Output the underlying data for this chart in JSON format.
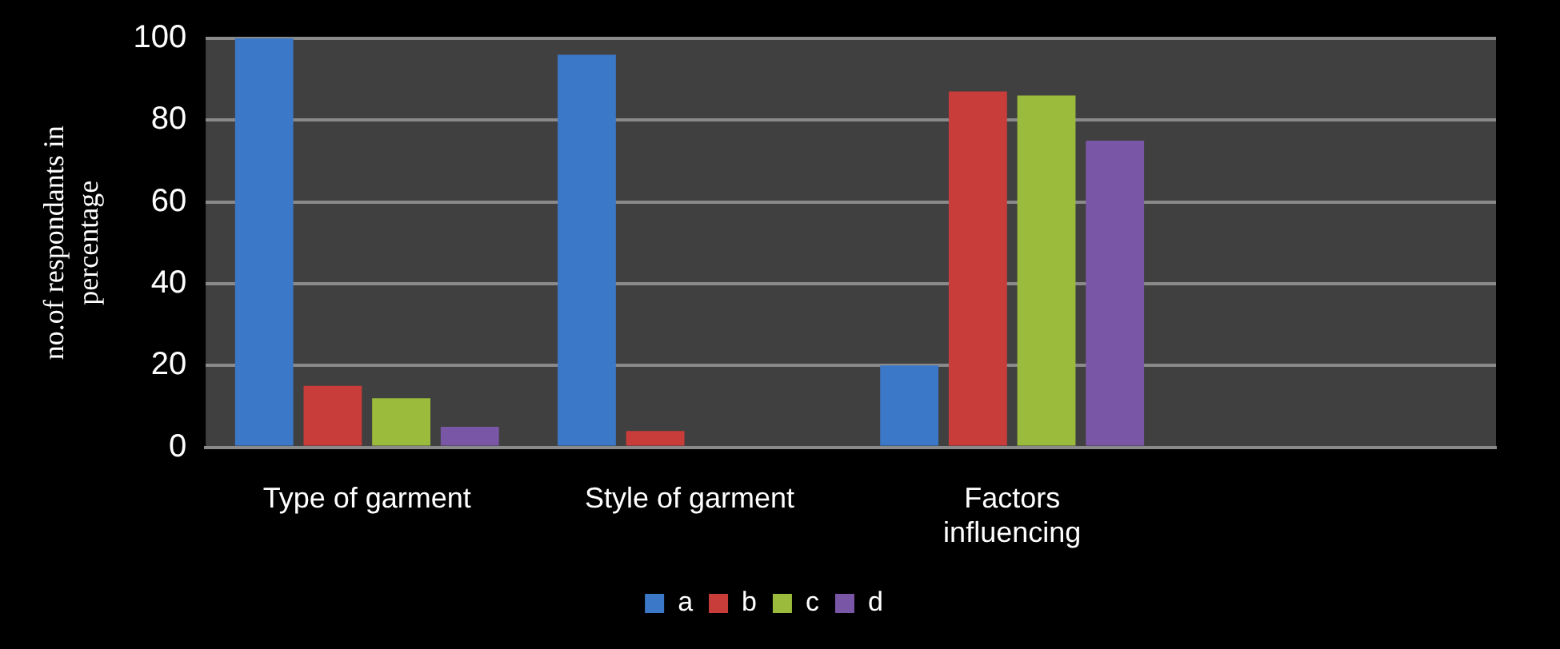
{
  "chart_data": {
    "type": "bar",
    "ylabel": "no.of respondants in percentage",
    "categories": [
      "Type of garment",
      "Style of garment",
      "Factors influencing",
      null
    ],
    "series": [
      {
        "name": "a",
        "color": "#3b78c8",
        "values": [
          100,
          96,
          20,
          null
        ]
      },
      {
        "name": "b",
        "color": "#c83c3a",
        "values": [
          15,
          4,
          87,
          null
        ]
      },
      {
        "name": "c",
        "color": "#9bbb3c",
        "values": [
          12,
          null,
          86,
          null
        ]
      },
      {
        "name": "d",
        "color": "#7a56a6",
        "values": [
          5,
          null,
          75,
          null
        ]
      }
    ],
    "ylim": [
      0,
      100
    ],
    "yticks": [
      0,
      20,
      40,
      60,
      80,
      100
    ],
    "grid": "y",
    "legend": "bottom"
  }
}
